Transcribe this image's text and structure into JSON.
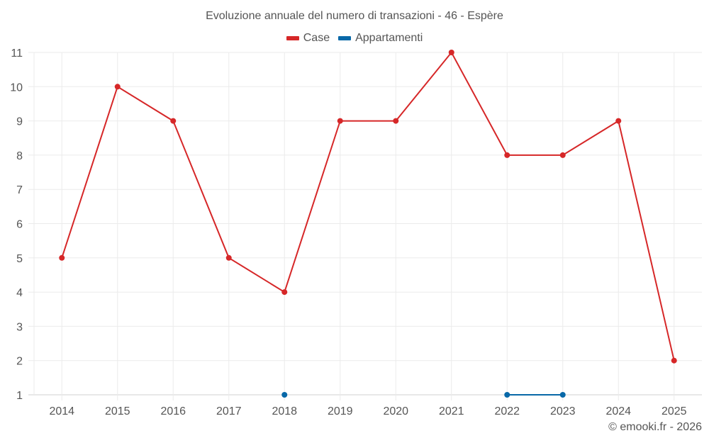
{
  "chart_data": {
    "type": "line",
    "title": "Evoluzione annuale del numero di transazioni - 46 - Espère",
    "xlabel": "",
    "ylabel": "",
    "x": [
      "2014",
      "2015",
      "2016",
      "2017",
      "2018",
      "2019",
      "2020",
      "2021",
      "2022",
      "2023",
      "2024",
      "2025"
    ],
    "ylim": [
      1,
      11
    ],
    "yticks": [
      1,
      2,
      3,
      4,
      5,
      6,
      7,
      8,
      9,
      10,
      11
    ],
    "grid": true,
    "legend_position": "top",
    "series": [
      {
        "name": "Case",
        "color": "#d62728",
        "values": [
          5,
          10,
          9,
          5,
          4,
          9,
          9,
          11,
          8,
          8,
          9,
          2
        ]
      },
      {
        "name": "Appartamenti",
        "color": "#0868a8",
        "values": [
          null,
          null,
          null,
          null,
          1,
          null,
          null,
          null,
          1,
          1,
          null,
          null
        ]
      }
    ]
  },
  "legend": {
    "items": [
      {
        "label": "Case",
        "color": "#d62728"
      },
      {
        "label": "Appartamenti",
        "color": "#0868a8"
      }
    ]
  },
  "credit": "© emooki.fr - 2026"
}
